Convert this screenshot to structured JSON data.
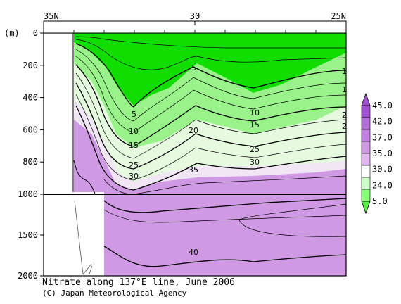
{
  "chart_data": {
    "type": "heatmap",
    "title": "Nitrate along 137°E line, June 2006",
    "credit": "(C) Japan Meteorological Agency",
    "x_axis": {
      "ticks": [
        "35N",
        "30",
        "25N"
      ],
      "tick_values": [
        35,
        30,
        25
      ],
      "range": [
        35,
        25
      ]
    },
    "y_axis": {
      "unit_label": "(m)",
      "ticks": [
        "0",
        "200",
        "400",
        "600",
        "800",
        "1000",
        "1500",
        "2000"
      ],
      "tick_values": [
        0,
        200,
        400,
        600,
        800,
        1000,
        1500,
        2000
      ],
      "range": [
        0,
        2000
      ],
      "note": "axis scale changes at 1000 m"
    },
    "colorbar": {
      "labels": [
        "45.0",
        "42.0",
        "37.0",
        "35.0",
        "30.0",
        "24.0",
        "5.0"
      ],
      "colors": [
        "#ffffff",
        "#ccffcc",
        "#aaff99",
        "#88ff77",
        "#55ee44",
        "#11dd00",
        "#e0b8ee",
        "#cf99e4",
        "#c080e0",
        "#a050d0"
      ]
    },
    "contour_labels": [
      "5",
      "5",
      "1",
      "1",
      "2",
      "2",
      "10",
      "10",
      "15",
      "15",
      "20",
      "25",
      "25",
      "30",
      "30",
      "35",
      "40"
    ],
    "colors": {
      "green_bright": "#11dd00",
      "green_light": "#aaff99",
      "pale": "#e8fbe3",
      "violet": "#cf99e4",
      "violet_dark": "#c080e0",
      "white_topo": "#ffffff"
    }
  }
}
